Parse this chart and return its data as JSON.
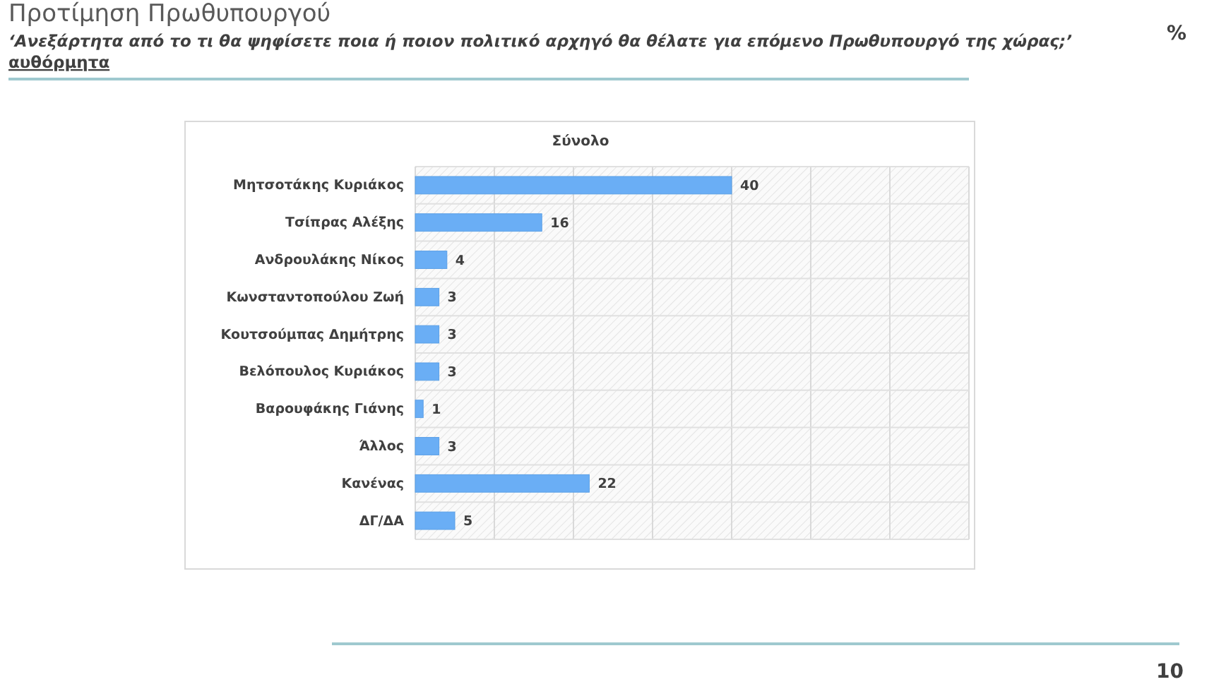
{
  "chart_data": {
    "type": "bar",
    "orientation": "horizontal",
    "title": "Προτίμηση Πρωθυπουργού",
    "subtitle": "‘Ανεξάρτητα από το τι θα ψηφίσετε ποια ή ποιον πολιτικό αρχηγό θα θέλατε για επόμενο Πρωθυπουργό της χώρας;’",
    "annotations": [
      "αυθόρμητα",
      "%",
      "Σύνολο",
      "10"
    ],
    "categories": [
      "Μητσοτάκης Κυριάκος",
      "Τσίπρας Αλέξης",
      "Ανδρουλάκης Νίκος",
      "Κωνσταντοπούλου Ζωή",
      "Κουτσούμπας Δημήτρης",
      "Βελόπουλος Κυριάκος",
      "Βαρουφάκης Γιάνης",
      "Άλλος",
      "Κανένας",
      "ΔΓ/ΔΑ"
    ],
    "values": [
      40,
      16,
      4,
      3,
      3,
      3,
      1,
      3,
      22,
      5
    ],
    "color": "#6aaef5",
    "xlim": [
      0,
      70
    ],
    "xticks": [
      {
        "value": 0,
        "label": null
      },
      {
        "value": 10,
        "label": null
      },
      {
        "value": 20,
        "label": null
      },
      {
        "value": 30,
        "label": null
      },
      {
        "value": 40,
        "label": null
      },
      {
        "value": 50,
        "label": null
      },
      {
        "value": 60,
        "label": null
      },
      {
        "value": 70,
        "label": null
      }
    ],
    "grid": "x",
    "data_labels": true
  }
}
